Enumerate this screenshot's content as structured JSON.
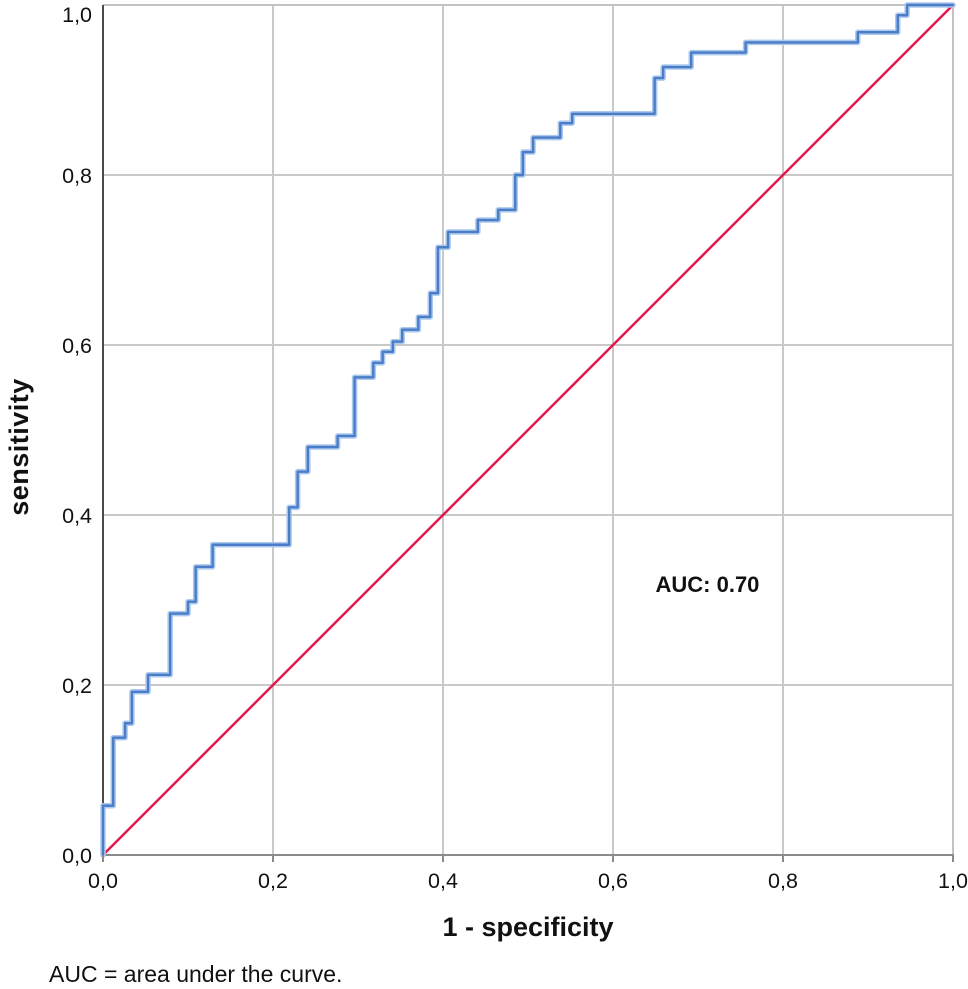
{
  "figure": {
    "background": "#ffffff"
  },
  "chart_data": {
    "type": "line",
    "subtype": "roc-step-curve",
    "title": "",
    "xlabel": "1 - specificity",
    "ylabel": "sensitivity",
    "xlim": [
      0,
      1
    ],
    "ylim": [
      0,
      1
    ],
    "grid": true,
    "grid_interval": 0.2,
    "x_ticks": [
      "0,0",
      "0,2",
      "0,4",
      "0,6",
      "0,8",
      "1,0"
    ],
    "y_ticks": [
      "0,0",
      "0,2",
      "0,4",
      "0,6",
      "0,8",
      "1,0"
    ],
    "annotation": "AUC: 0.70",
    "auc_value": 0.7,
    "annotation_anchor": {
      "x": 0.65,
      "y": 0.318
    },
    "legend_position": "none",
    "series": [
      {
        "name": "ROC curve",
        "color": "#4a7cc7",
        "halo_color": "#abc9ed",
        "points": [
          [
            0.0,
            0.0
          ],
          [
            0.0,
            0.058
          ],
          [
            0.012,
            0.058
          ],
          [
            0.012,
            0.138
          ],
          [
            0.026,
            0.138
          ],
          [
            0.026,
            0.155
          ],
          [
            0.034,
            0.155
          ],
          [
            0.034,
            0.192
          ],
          [
            0.053,
            0.192
          ],
          [
            0.053,
            0.212
          ],
          [
            0.079,
            0.212
          ],
          [
            0.079,
            0.284
          ],
          [
            0.1,
            0.284
          ],
          [
            0.1,
            0.298
          ],
          [
            0.109,
            0.298
          ],
          [
            0.109,
            0.339
          ],
          [
            0.129,
            0.339
          ],
          [
            0.129,
            0.365
          ],
          [
            0.219,
            0.365
          ],
          [
            0.219,
            0.409
          ],
          [
            0.229,
            0.409
          ],
          [
            0.229,
            0.451
          ],
          [
            0.241,
            0.451
          ],
          [
            0.241,
            0.48
          ],
          [
            0.276,
            0.48
          ],
          [
            0.276,
            0.493
          ],
          [
            0.296,
            0.493
          ],
          [
            0.296,
            0.562
          ],
          [
            0.318,
            0.562
          ],
          [
            0.318,
            0.579
          ],
          [
            0.329,
            0.579
          ],
          [
            0.329,
            0.592
          ],
          [
            0.341,
            0.592
          ],
          [
            0.341,
            0.604
          ],
          [
            0.352,
            0.604
          ],
          [
            0.352,
            0.618
          ],
          [
            0.371,
            0.618
          ],
          [
            0.371,
            0.633
          ],
          [
            0.385,
            0.633
          ],
          [
            0.385,
            0.661
          ],
          [
            0.394,
            0.661
          ],
          [
            0.394,
            0.715
          ],
          [
            0.406,
            0.715
          ],
          [
            0.406,
            0.733
          ],
          [
            0.441,
            0.733
          ],
          [
            0.441,
            0.747
          ],
          [
            0.465,
            0.747
          ],
          [
            0.465,
            0.759
          ],
          [
            0.485,
            0.759
          ],
          [
            0.485,
            0.8
          ],
          [
            0.494,
            0.8
          ],
          [
            0.494,
            0.827
          ],
          [
            0.506,
            0.827
          ],
          [
            0.506,
            0.844
          ],
          [
            0.538,
            0.844
          ],
          [
            0.538,
            0.861
          ],
          [
            0.552,
            0.861
          ],
          [
            0.552,
            0.872
          ],
          [
            0.649,
            0.872
          ],
          [
            0.649,
            0.914
          ],
          [
            0.659,
            0.914
          ],
          [
            0.659,
            0.927
          ],
          [
            0.692,
            0.927
          ],
          [
            0.692,
            0.944
          ],
          [
            0.756,
            0.944
          ],
          [
            0.756,
            0.956
          ],
          [
            0.888,
            0.956
          ],
          [
            0.888,
            0.968
          ],
          [
            0.935,
            0.968
          ],
          [
            0.935,
            0.988
          ],
          [
            0.946,
            0.988
          ],
          [
            0.946,
            1.0
          ],
          [
            1.0,
            1.0
          ]
        ]
      },
      {
        "name": "reference diagonal",
        "color": "#e2174a",
        "points": [
          [
            0,
            0
          ],
          [
            1,
            1
          ]
        ]
      }
    ],
    "colors": {
      "grid": "#c9c9c9",
      "frame": "#c2c2c2",
      "axis_left": "#4a4a4a",
      "axis_bottom": "#8a8a8a",
      "tick": "#8a8a8a",
      "text": "#111111"
    }
  },
  "footnote": "AUC = area under the curve."
}
